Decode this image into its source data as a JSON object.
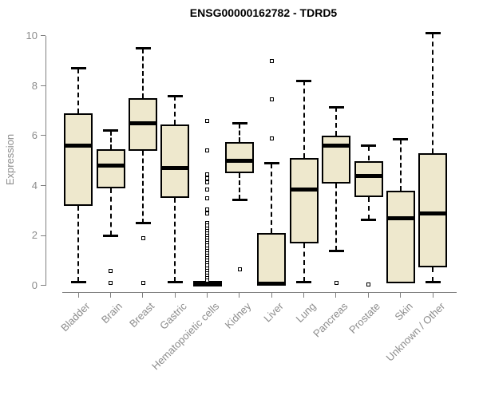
{
  "chart_data": {
    "type": "box",
    "title": "ENSG00000162782 - TDRD5",
    "ylabel": "Expression",
    "xlabel": "",
    "ylim": [
      0,
      10
    ],
    "yticks": [
      0,
      2,
      4,
      6,
      8,
      10
    ],
    "grid": false,
    "legend": false,
    "categories": [
      "Bladder",
      "Brain",
      "Breast",
      "Gastric",
      "Hematopoietic cells",
      "Kidney",
      "Liver",
      "Lung",
      "Pancreas",
      "Prostate",
      "Skin",
      "Unknown / Other"
    ],
    "boxes": [
      {
        "category": "Bladder",
        "whisker_low": 0.15,
        "q1": 3.2,
        "median": 5.6,
        "q3": 6.9,
        "whisker_high": 8.7,
        "outliers": []
      },
      {
        "category": "Brain",
        "whisker_low": 2.0,
        "q1": 3.9,
        "median": 4.8,
        "q3": 5.45,
        "whisker_high": 6.2,
        "outliers": [
          0.6,
          0.1
        ]
      },
      {
        "category": "Breast",
        "whisker_low": 2.5,
        "q1": 5.4,
        "median": 6.5,
        "q3": 7.5,
        "whisker_high": 9.5,
        "outliers": [
          1.9,
          0.1
        ]
      },
      {
        "category": "Gastric",
        "whisker_low": 0.15,
        "q1": 3.5,
        "median": 4.7,
        "q3": 6.45,
        "whisker_high": 7.6,
        "outliers": []
      },
      {
        "category": "Hematopoietic cells",
        "whisker_low": 0.0,
        "q1": 0.0,
        "median": 0.0,
        "q3": 0.0,
        "whisker_high": 0.0,
        "outliers": [
          6.6,
          5.4,
          4.45,
          4.3,
          4.15,
          3.85,
          3.5,
          3.05,
          2.9,
          2.5,
          2.4,
          2.3,
          2.2,
          2.1,
          2.0,
          1.9,
          1.8,
          1.7,
          1.6,
          1.5,
          1.4,
          1.3,
          1.2,
          1.1,
          1.0,
          0.9,
          0.8,
          0.7,
          0.6,
          0.5,
          0.4,
          0.3,
          0.2
        ]
      },
      {
        "category": "Kidney",
        "whisker_low": 3.45,
        "q1": 4.5,
        "median": 5.0,
        "q3": 5.75,
        "whisker_high": 6.5,
        "outliers": [
          0.65
        ]
      },
      {
        "category": "Liver",
        "whisker_low": 0.0,
        "q1": 0.0,
        "median": 0.08,
        "q3": 2.1,
        "whisker_high": 4.9,
        "outliers": [
          9.0,
          7.45,
          5.9
        ]
      },
      {
        "category": "Lung",
        "whisker_low": 0.15,
        "q1": 1.7,
        "median": 3.85,
        "q3": 5.1,
        "whisker_high": 8.2,
        "outliers": []
      },
      {
        "category": "Pancreas",
        "whisker_low": 1.4,
        "q1": 4.1,
        "median": 5.6,
        "q3": 6.0,
        "whisker_high": 7.15,
        "outliers": [
          0.1
        ]
      },
      {
        "category": "Prostate",
        "whisker_low": 2.65,
        "q1": 3.55,
        "median": 4.4,
        "q3": 5.0,
        "whisker_high": 5.6,
        "outliers": [
          0.05
        ]
      },
      {
        "category": "Skin",
        "whisker_low": 0.1,
        "q1": 0.1,
        "median": 2.7,
        "q3": 3.8,
        "whisker_high": 5.85,
        "outliers": []
      },
      {
        "category": "Unknown / Other",
        "whisker_low": 0.15,
        "q1": 0.75,
        "median": 2.9,
        "q3": 5.3,
        "whisker_high": 10.1,
        "outliers": []
      }
    ],
    "colors": {
      "box_fill": "#EEE8CD",
      "box_border": "#000000",
      "median": "#000000",
      "whisker": "#000000",
      "axis_line": "#7f7f7f",
      "tick_label": "#8c8c8c",
      "axis_label": "#8c8c8c",
      "title": "#000000",
      "background": "#ffffff"
    }
  }
}
